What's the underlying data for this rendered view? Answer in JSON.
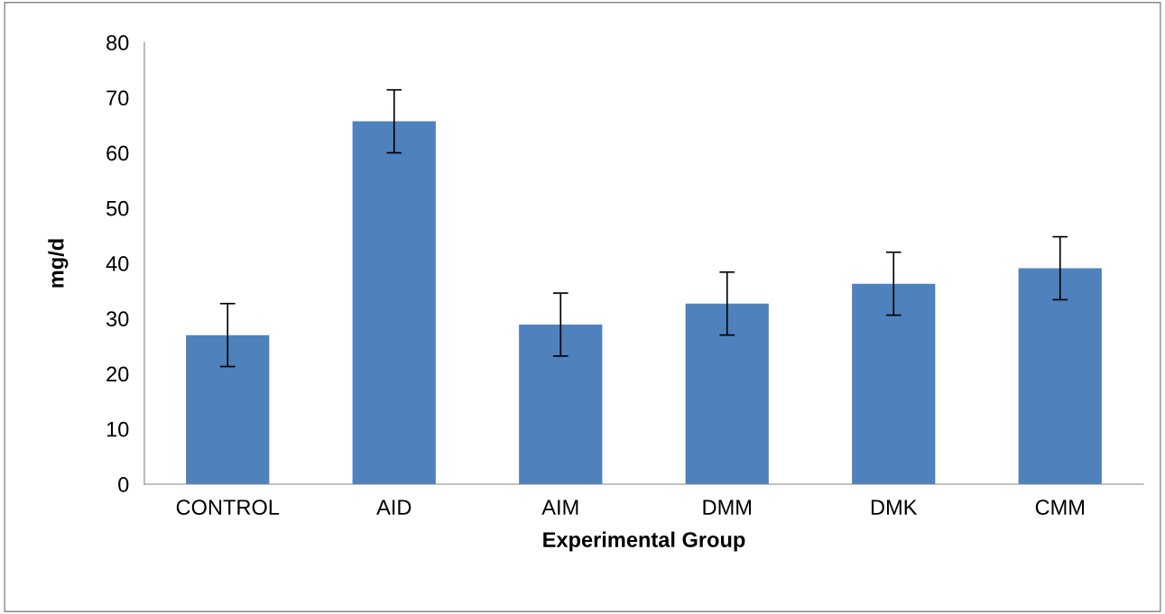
{
  "chart_data": {
    "type": "bar",
    "xlabel": "Experimental Group",
    "ylabel": "mg/d",
    "categories": [
      "CONTROL",
      "AID",
      "AIM",
      "DMM",
      "DMK",
      "CMM"
    ],
    "values": [
      27,
      65.7,
      28.9,
      32.7,
      36.3,
      39.1
    ],
    "errors": [
      5.7,
      5.7,
      5.7,
      5.7,
      5.7,
      5.7
    ],
    "color": "#4f81bd",
    "ylim": [
      0,
      80
    ],
    "yticks": [
      0,
      10,
      20,
      30,
      40,
      50,
      60,
      70,
      80
    ],
    "grid": false
  }
}
